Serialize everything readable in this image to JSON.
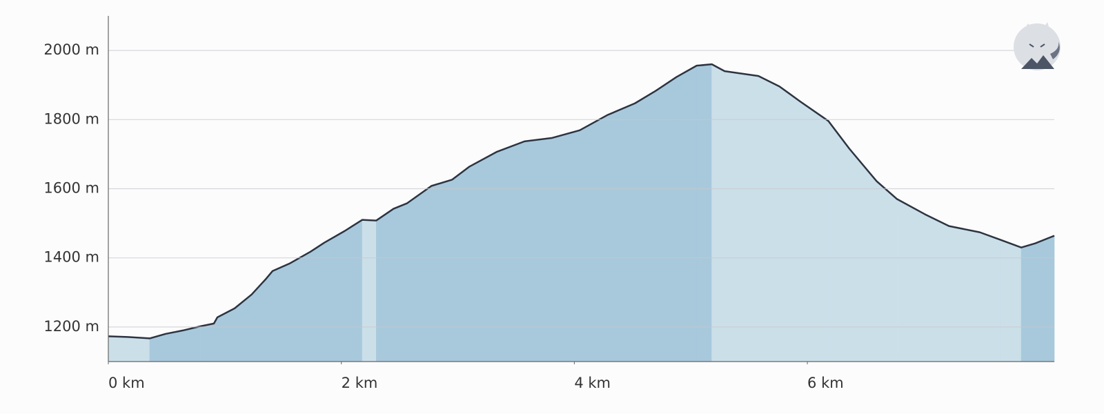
{
  "chart_data": {
    "type": "elevation",
    "x": [
      0,
      0.166,
      0.355,
      0.49,
      0.64,
      0.79,
      0.906,
      0.936,
      1.084,
      1.23,
      1.35,
      1.41,
      1.558,
      1.736,
      1.854,
      2.03,
      2.18,
      2.3,
      2.448,
      2.565,
      2.773,
      2.95,
      3.1,
      3.336,
      3.572,
      3.81,
      4.046,
      4.283,
      4.52,
      4.698,
      4.876,
      5.05,
      5.18,
      5.29,
      5.58,
      5.76,
      5.94,
      6.18,
      6.36,
      6.594,
      6.77,
      7.01,
      7.216,
      7.48,
      7.66,
      7.836,
      7.956,
      8.12
    ],
    "values": [
      1173,
      1171,
      1167,
      1180,
      1190,
      1202,
      1210,
      1228,
      1254,
      1294,
      1338,
      1362,
      1384,
      1418,
      1444,
      1478,
      1510,
      1508,
      1542,
      1558,
      1608,
      1626,
      1664,
      1707,
      1737,
      1747,
      1769,
      1813,
      1847,
      1883,
      1923,
      1956,
      1960,
      1940,
      1926,
      1896,
      1852,
      1796,
      1716,
      1622,
      1570,
      1526,
      1492,
      1474,
      1452,
      1430,
      1442,
      1464
    ],
    "xlim": [
      0,
      8.12
    ],
    "ylim": [
      1100,
      2100
    ],
    "xticks": [
      {
        "value": 0,
        "label": "0 km"
      },
      {
        "value": 2,
        "label": "2 km"
      },
      {
        "value": 4,
        "label": "4 km"
      },
      {
        "value": 6,
        "label": "6 km"
      }
    ],
    "yticks": [
      {
        "value": 1200,
        "label": "1200 m"
      },
      {
        "value": 1400,
        "label": "1400 m"
      },
      {
        "value": 1600,
        "label": "1600 m"
      },
      {
        "value": 1800,
        "label": "1800 m"
      },
      {
        "value": 2000,
        "label": "2000 m"
      }
    ],
    "grid": true,
    "line_color": "#2d3340",
    "ascent_color": "#a8c9dc",
    "descent_color": "#cbdfe9"
  }
}
